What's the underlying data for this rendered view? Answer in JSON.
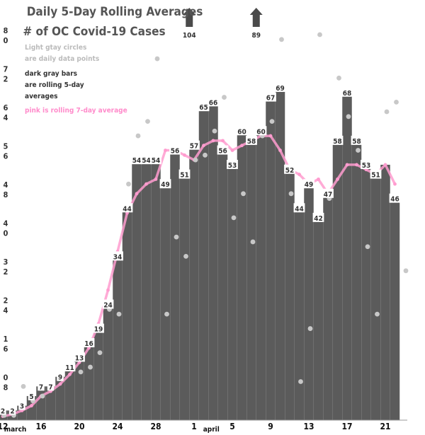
{
  "chart_data": {
    "type": "bar",
    "title_line1": "Daily 5-Day Rolling Averages",
    "title_line2": "# of OC Covid-19 Cases",
    "legend": {
      "circles_line1": "Light gtay circles",
      "circles_line2": "are daily data points",
      "bars_line1": "dark gray bars",
      "bars_line2": "are rolling 5-day",
      "bars_line3": "averages",
      "pink_line": "pink is rolling 7-day average"
    },
    "ylim": [
      0,
      80
    ],
    "y_ticks": [
      {
        "value": 80,
        "label": [
          "8",
          "0"
        ]
      },
      {
        "value": 72,
        "label": [
          "7",
          "2"
        ]
      },
      {
        "value": 64,
        "label": [
          "6",
          "4"
        ]
      },
      {
        "value": 56,
        "label": [
          "5",
          "6"
        ]
      },
      {
        "value": 48,
        "label": [
          "4",
          "8"
        ]
      },
      {
        "value": 40,
        "label": [
          "4",
          "0"
        ]
      },
      {
        "value": 32,
        "label": [
          "3",
          "2"
        ]
      },
      {
        "value": 24,
        "label": [
          "2",
          "4"
        ]
      },
      {
        "value": 16,
        "label": [
          "1",
          "6"
        ]
      },
      {
        "value": 8,
        "label": [
          "0",
          "8"
        ]
      }
    ],
    "x_ticks": [
      {
        "day": 12,
        "label": "12"
      },
      {
        "day": 16,
        "label": "16"
      },
      {
        "day": 20,
        "label": "20"
      },
      {
        "day": 24,
        "label": "24"
      },
      {
        "day": 28,
        "label": "28"
      },
      {
        "day": 32,
        "label": "1"
      },
      {
        "day": 36,
        "label": "5"
      },
      {
        "day": 40,
        "label": "9"
      },
      {
        "day": 44,
        "label": "13"
      },
      {
        "day": 48,
        "label": "17"
      },
      {
        "day": 52,
        "label": "21"
      }
    ],
    "month_labels": [
      {
        "day": 13,
        "label": "march"
      },
      {
        "day": 33.5,
        "label": "april"
      }
    ],
    "days": [
      12,
      13,
      14,
      15,
      16,
      17,
      18,
      19,
      20,
      21,
      22,
      23,
      24,
      25,
      26,
      27,
      28,
      29,
      30,
      31,
      32,
      33,
      34,
      35,
      36,
      37,
      38,
      39,
      40,
      41,
      42,
      43,
      44,
      45,
      46,
      47,
      48,
      49,
      50,
      51,
      52,
      53
    ],
    "bar_values": [
      2,
      2,
      3,
      5,
      7,
      7,
      9,
      11,
      13,
      16,
      19,
      24,
      34,
      44,
      54,
      54,
      54,
      49,
      56,
      51,
      57,
      65,
      66,
      56,
      53,
      60,
      58,
      60,
      67,
      69,
      52,
      44,
      49,
      42,
      47,
      58,
      68,
      58,
      53,
      51,
      53,
      46
    ],
    "bar_labels": [
      "2",
      "2",
      "3",
      "5",
      "7",
      "7",
      "9",
      "11",
      "13",
      "16",
      "19",
      "24",
      "34",
      "44",
      "54",
      "54",
      "54",
      "49",
      "56",
      "51",
      "57",
      "65",
      "66",
      "56",
      "53",
      "60",
      "58",
      "60",
      "67",
      "69",
      "52",
      "44",
      "49",
      "42",
      "47",
      "58",
      "68",
      "58",
      "53",
      "51",
      "",
      "46"
    ],
    "annotations": [
      {
        "day": 31.5,
        "label": "104"
      },
      {
        "day": 38.5,
        "label": "89"
      }
    ],
    "daily_points": [
      {
        "day": 12,
        "value": 1
      },
      {
        "day": 13,
        "value": 1
      },
      {
        "day": 14,
        "value": 7
      },
      {
        "day": 15,
        "value": 4
      },
      {
        "day": 16,
        "value": 5
      },
      {
        "day": 17,
        "value": 7
      },
      {
        "day": 18,
        "value": 9
      },
      {
        "day": 19,
        "value": 11
      },
      {
        "day": 20,
        "value": 10
      },
      {
        "day": 21,
        "value": 11
      },
      {
        "day": 22,
        "value": 14
      },
      {
        "day": 23,
        "value": 23
      },
      {
        "day": 24,
        "value": 22
      },
      {
        "day": 25,
        "value": 49
      },
      {
        "day": 26,
        "value": 59
      },
      {
        "day": 27,
        "value": 62
      },
      {
        "day": 28,
        "value": 75
      },
      {
        "day": 29,
        "value": 22
      },
      {
        "day": 30,
        "value": 38
      },
      {
        "day": 31,
        "value": 34
      },
      {
        "day": 32,
        "value": 54
      },
      {
        "day": 33,
        "value": 55
      },
      {
        "day": 34,
        "value": 60
      },
      {
        "day": 35,
        "value": 67
      },
      {
        "day": 36,
        "value": 42
      },
      {
        "day": 37,
        "value": 47
      },
      {
        "day": 38,
        "value": 37
      },
      {
        "day": 39,
        "value": 59
      },
      {
        "day": 40,
        "value": 62
      },
      {
        "day": 41,
        "value": 79
      },
      {
        "day": 42,
        "value": 47
      },
      {
        "day": 43,
        "value": 8
      },
      {
        "day": 44,
        "value": 19
      },
      {
        "day": 45,
        "value": 80
      },
      {
        "day": 46,
        "value": 46
      },
      {
        "day": 47,
        "value": 71
      },
      {
        "day": 48,
        "value": 63
      },
      {
        "day": 49,
        "value": 56
      },
      {
        "day": 50,
        "value": 36
      },
      {
        "day": 51,
        "value": 22
      },
      {
        "day": 52,
        "value": 64
      },
      {
        "day": 53,
        "value": 66
      },
      {
        "day": 54,
        "value": 31
      }
    ],
    "rolling_7day": [
      {
        "day": 12,
        "value": 0.8
      },
      {
        "day": 13,
        "value": 1.2
      },
      {
        "day": 14,
        "value": 2
      },
      {
        "day": 15,
        "value": 3
      },
      {
        "day": 16,
        "value": 5
      },
      {
        "day": 17,
        "value": 6
      },
      {
        "day": 18,
        "value": 7.5
      },
      {
        "day": 19,
        "value": 9.5
      },
      {
        "day": 20,
        "value": 12
      },
      {
        "day": 21,
        "value": 15
      },
      {
        "day": 22,
        "value": 20
      },
      {
        "day": 23,
        "value": 27
      },
      {
        "day": 24,
        "value": 35
      },
      {
        "day": 25,
        "value": 43
      },
      {
        "day": 26,
        "value": 47
      },
      {
        "day": 27,
        "value": 49
      },
      {
        "day": 28,
        "value": 50
      },
      {
        "day": 29,
        "value": 56
      },
      {
        "day": 30,
        "value": 56
      },
      {
        "day": 31,
        "value": 55
      },
      {
        "day": 32,
        "value": 54
      },
      {
        "day": 33,
        "value": 57
      },
      {
        "day": 34,
        "value": 58
      },
      {
        "day": 35,
        "value": 58
      },
      {
        "day": 36,
        "value": 56
      },
      {
        "day": 37,
        "value": 57
      },
      {
        "day": 38,
        "value": 58
      },
      {
        "day": 39,
        "value": 59
      },
      {
        "day": 40,
        "value": 59
      },
      {
        "day": 41,
        "value": 56
      },
      {
        "day": 42,
        "value": 52
      },
      {
        "day": 43,
        "value": 51
      },
      {
        "day": 44,
        "value": 49
      },
      {
        "day": 45,
        "value": 50
      },
      {
        "day": 46,
        "value": 47
      },
      {
        "day": 47,
        "value": 50
      },
      {
        "day": 48,
        "value": 53
      },
      {
        "day": 49,
        "value": 53
      },
      {
        "day": 50,
        "value": 52
      },
      {
        "day": 51,
        "value": 51
      },
      {
        "day": 52,
        "value": 53
      },
      {
        "day": 53,
        "value": 49
      }
    ],
    "colors": {
      "bar": "#5b5b5b",
      "daily_points": "#c8c8c8",
      "rolling_line": "#ff9ccf",
      "arrow": "#4a4a4a",
      "title": "#555555",
      "legend_circles_text": "#bbbbbb",
      "legend_bars_text": "#333333",
      "legend_pink_text": "#ff8ccb"
    }
  }
}
